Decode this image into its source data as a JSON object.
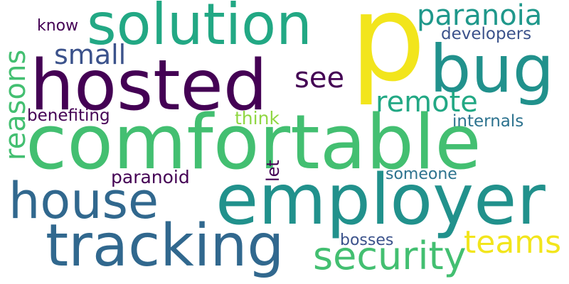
{
  "words": [
    {
      "text": "p",
      "color": "#f2e51c"
    },
    {
      "text": "comfortable",
      "color": "#43bf71"
    },
    {
      "text": "hosted",
      "color": "#440154"
    },
    {
      "text": "employer",
      "color": "#21918c"
    },
    {
      "text": "bug",
      "color": "#21918c"
    },
    {
      "text": "solution",
      "color": "#22a884"
    },
    {
      "text": "tracking",
      "color": "#31688e"
    },
    {
      "text": "house",
      "color": "#31688e"
    },
    {
      "text": "security",
      "color": "#43bf71"
    },
    {
      "text": "paranoia",
      "color": "#1f988b"
    },
    {
      "text": "remote",
      "color": "#22a884"
    },
    {
      "text": "reasons",
      "color": "#43bf71"
    },
    {
      "text": "teams",
      "color": "#f2e51c"
    },
    {
      "text": "small",
      "color": "#3b528b"
    },
    {
      "text": "see",
      "color": "#440154"
    },
    {
      "text": "developers",
      "color": "#3b528b"
    },
    {
      "text": "internals",
      "color": "#2c728e"
    },
    {
      "text": "benefiting",
      "color": "#440154"
    },
    {
      "text": "think",
      "color": "#90d743"
    },
    {
      "text": "paranoid",
      "color": "#440154"
    },
    {
      "text": "someone",
      "color": "#2c728e"
    },
    {
      "text": "bosses",
      "color": "#3b528b"
    },
    {
      "text": "know",
      "color": "#440154"
    },
    {
      "text": "let",
      "color": "#440154"
    }
  ]
}
